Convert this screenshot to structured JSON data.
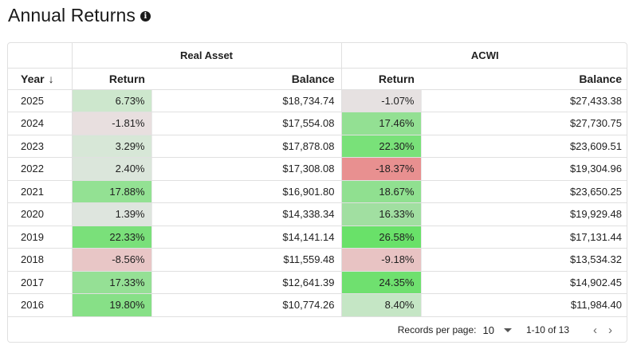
{
  "page": {
    "title": "Annual Returns",
    "info_icon": "info-icon"
  },
  "table": {
    "groups": [
      "Real Asset",
      "ACWI"
    ],
    "columns": {
      "year": "Year",
      "return": "Return",
      "balance": "Balance"
    },
    "sort_icon": "arrow-down-icon",
    "rows": [
      {
        "year": "2025",
        "ra_return": "6.73%",
        "ra_balance": "$18,734.74",
        "acwi_return": "-1.07%",
        "acwi_balance": "$27,433.38",
        "ra_color": "#cde7cd",
        "acwi_color": "#e6e1e1"
      },
      {
        "year": "2024",
        "ra_return": "-1.81%",
        "ra_balance": "$17,554.08",
        "acwi_return": "17.46%",
        "acwi_balance": "$27,730.75",
        "ra_color": "#e8dfdf",
        "acwi_color": "#93e093"
      },
      {
        "year": "2023",
        "ra_return": "3.29%",
        "ra_balance": "$17,878.08",
        "acwi_return": "22.30%",
        "acwi_balance": "$23,609.51",
        "ra_color": "#d7e7d7",
        "acwi_color": "#79e179"
      },
      {
        "year": "2022",
        "ra_return": "2.40%",
        "ra_balance": "$17,308.08",
        "acwi_return": "-18.37%",
        "acwi_balance": "$19,304.96",
        "ra_color": "#dbe6db",
        "acwi_color": "#e89090"
      },
      {
        "year": "2021",
        "ra_return": "17.88%",
        "ra_balance": "$16,901.80",
        "acwi_return": "18.67%",
        "acwi_balance": "$23,650.25",
        "ra_color": "#93e193",
        "acwi_color": "#90e090"
      },
      {
        "year": "2020",
        "ra_return": "1.39%",
        "ra_balance": "$14,338.34",
        "acwi_return": "16.33%",
        "acwi_balance": "$19,929.48",
        "ra_color": "#dee5de",
        "acwi_color": "#a1dfa1"
      },
      {
        "year": "2019",
        "ra_return": "22.33%",
        "ra_balance": "$14,141.14",
        "acwi_return": "26.58%",
        "acwi_balance": "$17,131.44",
        "ra_color": "#7ae07a",
        "acwi_color": "#69e169"
      },
      {
        "year": "2018",
        "ra_return": "-8.56%",
        "ra_balance": "$11,559.48",
        "acwi_return": "-9.18%",
        "acwi_balance": "$13,534.32",
        "ra_color": "#e8c6c6",
        "acwi_color": "#e8c3c3"
      },
      {
        "year": "2017",
        "ra_return": "17.33%",
        "ra_balance": "$12,641.39",
        "acwi_return": "24.35%",
        "acwi_balance": "$14,902.45",
        "ra_color": "#95e095",
        "acwi_color": "#6fe06f"
      },
      {
        "year": "2016",
        "ra_return": "19.80%",
        "ra_balance": "$10,774.26",
        "acwi_return": "8.40%",
        "acwi_balance": "$11,984.40",
        "ra_color": "#87e087",
        "acwi_color": "#c5e6c5"
      }
    ]
  },
  "pagination": {
    "records_label": "Records per page:",
    "records_value": "10",
    "range": "1-10 of 13",
    "prev_icon": "chevron-left-icon",
    "next_icon": "chevron-right-icon"
  }
}
